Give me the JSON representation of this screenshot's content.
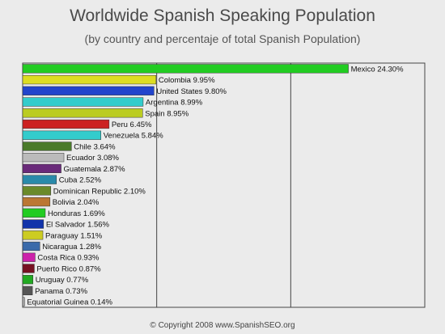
{
  "title": "Worldwide Spanish Speaking Population",
  "subtitle": "(by country and percentaje of total Spanish Population)",
  "footer": "© Copyright 2008 www.SpanishSEO.org",
  "chart_data": {
    "type": "bar",
    "orientation": "horizontal",
    "grid": true,
    "xlim": [
      0,
      30
    ],
    "categories": [
      "Mexico",
      "Colombia",
      "United States",
      "Argentina",
      "Spain",
      "Peru",
      "Venezuela",
      "Chile",
      "Ecuador",
      "Guatemala",
      "Cuba",
      "Dominican Republic",
      "Bolivia",
      "Honduras",
      "El Salvador",
      "Paraguay",
      "Nicaragua",
      "Costa Rica",
      "Puerto Rico",
      "Uruguay",
      "Panama",
      "Equatorial Guinea"
    ],
    "values": [
      24.3,
      9.95,
      9.8,
      8.99,
      8.95,
      6.45,
      5.84,
      3.64,
      3.08,
      2.87,
      2.52,
      2.1,
      2.04,
      1.69,
      1.56,
      1.51,
      1.28,
      0.93,
      0.87,
      0.77,
      0.73,
      0.14
    ],
    "labels": [
      "Mexico 24.30%",
      "Colombia 9.95%",
      "United States 9.80%",
      "Argentina 8.99%",
      "Spain 8.95%",
      "Peru 6.45%",
      "Venezuela 5.84%",
      "Chile 3.64%",
      "Ecuador 3.08%",
      "Guatemala 2.87%",
      "Cuba 2.52%",
      "Dominican Republic 2.10%",
      "Bolivia 2.04%",
      "Honduras 1.69%",
      "El Salvador 1.56%",
      "Paraguay 1.51%",
      "Nicaragua 1.28%",
      "Costa Rica 0.93%",
      "Puerto Rico 0.87%",
      "Uruguay 0.77%",
      "Panama 0.73%",
      "Equatorial Guinea 0.14%"
    ],
    "colors": [
      "#22cc22",
      "#dddd22",
      "#2244cc",
      "#33cccc",
      "#bbcc22",
      "#cc2222",
      "#33cccc",
      "#4a7a2a",
      "#bbbbbb",
      "#6a2a7a",
      "#2a8aaa",
      "#6a8a2a",
      "#bb7733",
      "#22cc22",
      "#1133aa",
      "#cccc22",
      "#3a6aaa",
      "#cc22aa",
      "#771122",
      "#22aa22",
      "#555555",
      "#aaaaaa"
    ]
  }
}
